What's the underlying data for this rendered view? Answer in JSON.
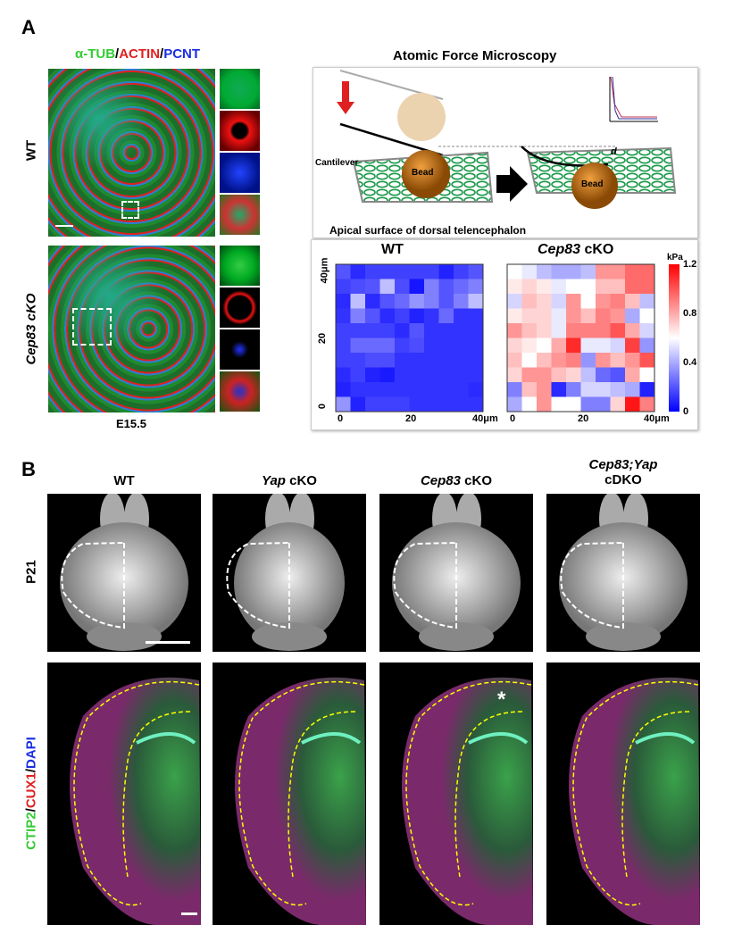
{
  "panel_a": {
    "letter": "A",
    "stain_title": {
      "a": "α-TUB",
      "sep1": "/",
      "b": "ACTIN",
      "sep2": "/",
      "c": "PCNT"
    },
    "row_labels": [
      "WT",
      "Cep83 cKO"
    ],
    "stage": "E15.5",
    "afm": {
      "title": "Atomic Force Microscopy",
      "cantilever": "Cantilever",
      "bead": "Bead",
      "d": "d",
      "surface": "Apical surface of dorsal telencephalon"
    }
  },
  "chart_data": {
    "type": "heatmap",
    "unit": "kPa",
    "colorbar": {
      "range": [
        0,
        1.2
      ],
      "ticks": [
        "0",
        "0.4",
        "0.8",
        "1.2"
      ],
      "colors": [
        "#0000ff",
        "#ffffff",
        "#ff0000"
      ]
    },
    "x_ticks": [
      "0",
      "20",
      "40μm"
    ],
    "y_ticks": [
      "0",
      "20",
      "40μm"
    ],
    "grid": "10x10",
    "maps": [
      {
        "title": "WT",
        "values": [
          [
            0.2,
            0.1,
            0.15,
            0.15,
            0.15,
            0.15,
            0.15,
            0.08,
            0.15,
            0.2
          ],
          [
            0.15,
            0.18,
            0.2,
            0.45,
            0.18,
            0.05,
            0.3,
            0.2,
            0.25,
            0.3
          ],
          [
            0.1,
            0.45,
            0.1,
            0.2,
            0.25,
            0.35,
            0.3,
            0.2,
            0.3,
            0.45
          ],
          [
            0.12,
            0.3,
            0.2,
            0.1,
            0.15,
            0.08,
            0.12,
            0.25,
            0.12,
            0.12
          ],
          [
            0.15,
            0.15,
            0.15,
            0.15,
            0.1,
            0.2,
            0.12,
            0.12,
            0.12,
            0.12
          ],
          [
            0.15,
            0.25,
            0.25,
            0.25,
            0.15,
            0.18,
            0.12,
            0.12,
            0.12,
            0.12
          ],
          [
            0.15,
            0.15,
            0.18,
            0.18,
            0.12,
            0.12,
            0.12,
            0.12,
            0.12,
            0.12
          ],
          [
            0.1,
            0.15,
            0.08,
            0.06,
            0.12,
            0.12,
            0.12,
            0.12,
            0.12,
            0.12
          ],
          [
            0.08,
            0.12,
            0.12,
            0.12,
            0.12,
            0.12,
            0.12,
            0.12,
            0.12,
            0.1
          ],
          [
            0.35,
            0.08,
            0.15,
            0.15,
            0.15,
            0.12,
            0.12,
            0.12,
            0.12,
            0.12
          ]
        ]
      },
      {
        "title_italic": "Cep83",
        "title_rest": " cKO",
        "values": [
          [
            0.6,
            0.55,
            0.45,
            0.4,
            0.4,
            0.45,
            0.85,
            0.85,
            0.95,
            0.95
          ],
          [
            0.65,
            0.7,
            0.65,
            0.55,
            0.6,
            0.6,
            0.75,
            0.75,
            0.95,
            0.95
          ],
          [
            0.5,
            0.75,
            0.7,
            0.5,
            0.85,
            0.6,
            0.85,
            0.9,
            0.75,
            0.45
          ],
          [
            0.65,
            0.7,
            0.7,
            0.55,
            0.85,
            0.75,
            0.9,
            0.85,
            0.4,
            0.6
          ],
          [
            0.85,
            0.75,
            0.7,
            0.55,
            0.9,
            0.9,
            0.9,
            1.0,
            0.8,
            0.5
          ],
          [
            0.7,
            0.65,
            0.6,
            0.8,
            1.1,
            0.55,
            0.55,
            0.5,
            1.05,
            0.35
          ],
          [
            0.75,
            0.6,
            0.75,
            0.85,
            0.9,
            0.35,
            0.85,
            0.75,
            0.85,
            1.0
          ],
          [
            0.7,
            0.85,
            0.85,
            0.75,
            0.7,
            0.45,
            0.25,
            0.2,
            0.8,
            0.6
          ],
          [
            0.3,
            0.75,
            0.85,
            0.1,
            0.3,
            0.5,
            0.5,
            0.45,
            0.4,
            0.08
          ],
          [
            0.4,
            0.6,
            0.85,
            0.6,
            0.6,
            0.3,
            0.3,
            0.7,
            1.15,
            0.9
          ]
        ]
      }
    ]
  },
  "panel_b": {
    "letter": "B",
    "columns": [
      {
        "italic": "",
        "rest": "WT"
      },
      {
        "italic": "Yap",
        "rest": " cKO"
      },
      {
        "italic": "Cep83",
        "rest": " cKO"
      },
      {
        "italic": "Cep83;Yap",
        "rest": "cDKO"
      }
    ],
    "row1_label": "P21",
    "row2_label": {
      "a": "CTIP2",
      "sep1": "/",
      "b": "CUX1",
      "sep2": "/",
      "c": "DAPI"
    },
    "asterisk": "*"
  }
}
